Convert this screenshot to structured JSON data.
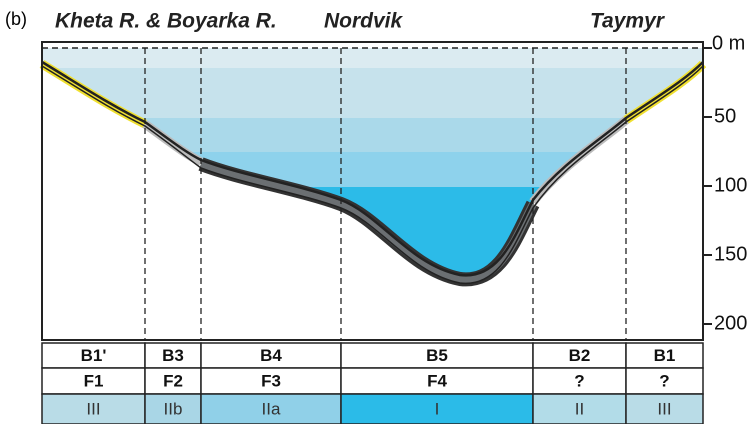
{
  "panel_label": "(b)",
  "regions": [
    "Kheta R. & Boyarka R.",
    "Nordvik",
    "Taymyr"
  ],
  "depth_axis": [
    "0 m",
    "50",
    "100",
    "150",
    "200"
  ],
  "columns": [
    {
      "zone": "B1'",
      "facies": "F1",
      "type": "III"
    },
    {
      "zone": "B3",
      "facies": "F2",
      "type": "IIb"
    },
    {
      "zone": "B4",
      "facies": "F3",
      "type": "IIa"
    },
    {
      "zone": "B5",
      "facies": "F4",
      "type": "I"
    },
    {
      "zone": "B2",
      "facies": "?",
      "type": "II"
    },
    {
      "zone": "B1",
      "facies": "?",
      "type": "III"
    }
  ]
}
